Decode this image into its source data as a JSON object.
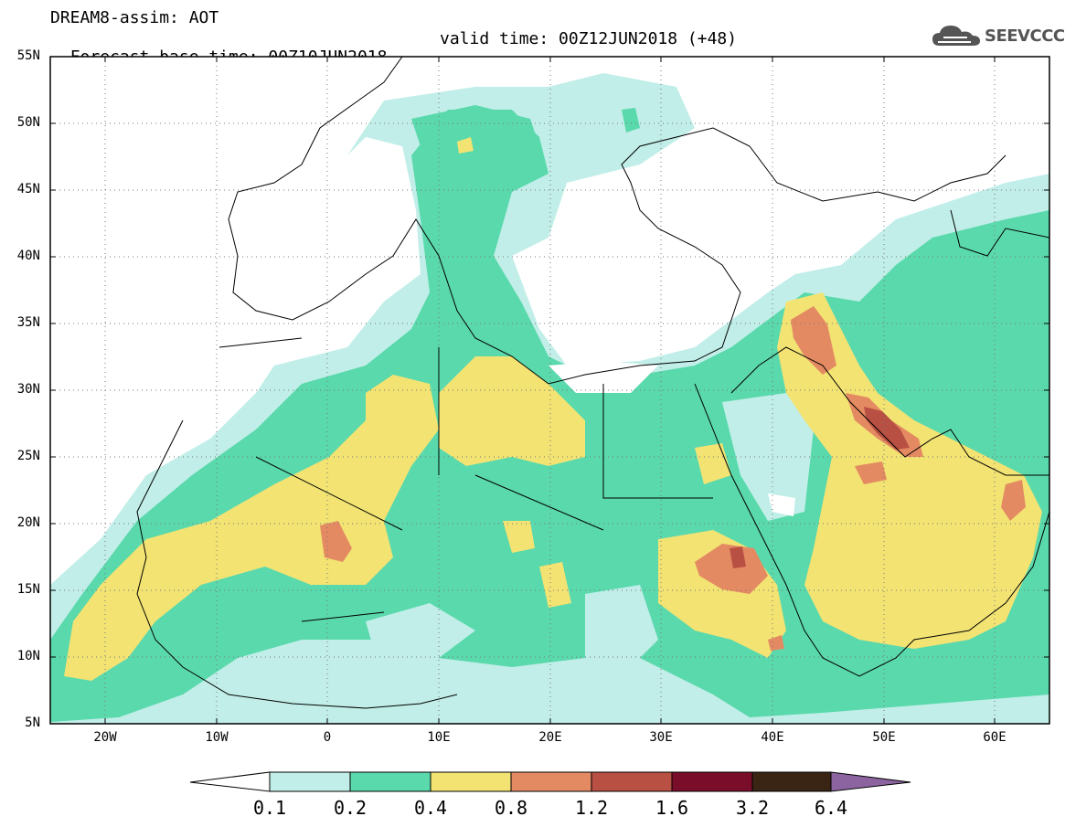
{
  "header": {
    "title_line1": "DREAM8-assim: AOT",
    "title_line2_left": "Forecast base time: 00Z10JUN2018",
    "title_line2_right": "valid time: 00Z12JUN2018 (+48)",
    "logo_text": "SEEVCCC",
    "logo_icon": "cloud-icon"
  },
  "map": {
    "lon_range": [
      -25,
      65
    ],
    "lat_range": [
      5,
      55
    ],
    "lat_labels": [
      "55N",
      "50N",
      "45N",
      "40N",
      "35N",
      "30N",
      "25N",
      "20N",
      "15N",
      "10N",
      "5N"
    ],
    "lon_labels": [
      "20W",
      "10W",
      "0",
      "10E",
      "20E",
      "30E",
      "40E",
      "50E",
      "60E"
    ],
    "background_color": "#ffffff",
    "grid": "dotted"
  },
  "legend": {
    "levels": [
      "0.1",
      "0.2",
      "0.4",
      "0.8",
      "1.2",
      "1.6",
      "3.2",
      "6.4"
    ],
    "colors": [
      "#c1eee8",
      "#5ad9ac",
      "#f2e373",
      "#e48a62",
      "#b85043",
      "#7a0e2a",
      "#3a2514",
      "#8c64a0"
    ],
    "below_color": "#ffffff"
  }
}
